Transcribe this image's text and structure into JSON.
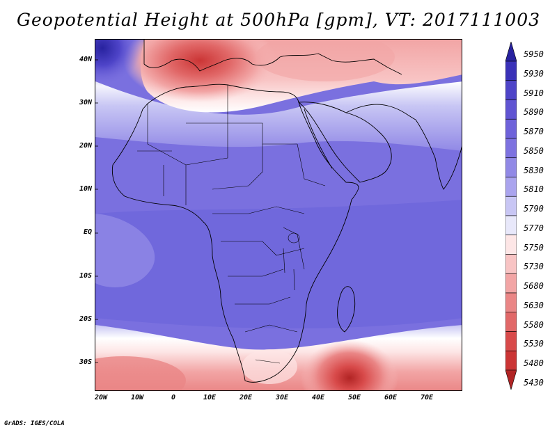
{
  "title": "Geopotential Height at 500hPa [gpm], VT: 2017111003",
  "credit": "GrADS: IGES/COLA",
  "lat_labels": [
    "40N",
    "30N",
    "20N",
    "10N",
    "EQ",
    "10S",
    "20S",
    "30S"
  ],
  "lon_labels": [
    "20W",
    "10W",
    "0",
    "10E",
    "20E",
    "30E",
    "40E",
    "50E",
    "60E",
    "70E"
  ],
  "colorbar": {
    "levels": [
      "5950",
      "5930",
      "5910",
      "5890",
      "5870",
      "5850",
      "5830",
      "5810",
      "5790",
      "5770",
      "5750",
      "5730",
      "5680",
      "5630",
      "5580",
      "5530",
      "5480",
      "5430"
    ],
    "colors": [
      "#28229f",
      "#3a31b8",
      "#4e44c8",
      "#6054d2",
      "#6e62da",
      "#7d72e0",
      "#9189e6",
      "#aaa4ee",
      "#c8c6f4",
      "#e8e8fa",
      "#fde6e6",
      "#f8c4c4",
      "#f2a5a5",
      "#ea8686",
      "#e16868",
      "#d84a4a",
      "#cb3535",
      "#b12424"
    ]
  },
  "map": {
    "background_color": "#7a70df",
    "coast_color": "#000000"
  }
}
